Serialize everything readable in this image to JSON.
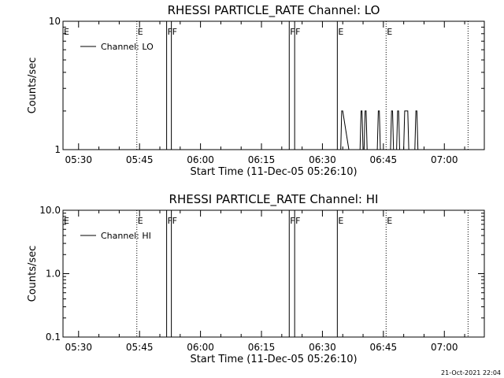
{
  "chart_data": [
    {
      "type": "line",
      "title": "RHESSI PARTICLE_RATE Channel: LO",
      "xlabel": "Start Time (11-Dec-05 05:26:10)",
      "ylabel": "Counts/sec",
      "y_scale": "log",
      "ylim": [
        1,
        10
      ],
      "y_ticks": [
        "1",
        "10"
      ],
      "y_tick_values": [
        1,
        10
      ],
      "xlim": [
        "05:26:10",
        "07:09:50"
      ],
      "x_ticks": [
        "05:30",
        "05:45",
        "06:00",
        "06:15",
        "06:30",
        "06:45",
        "07:00"
      ],
      "legend": {
        "label": "Channel: LO",
        "position": "top-left"
      },
      "series": [
        {
          "name": "Channel: LO",
          "x": [
            "06:34:30",
            "06:34:45",
            "06:35:00",
            "06:36:30",
            "06:39:15",
            "06:39:30",
            "06:39:45",
            "06:40:00",
            "06:40:15",
            "06:40:30",
            "06:40:45",
            "06:41:00",
            "06:43:30",
            "06:43:45",
            "06:44:00",
            "06:44:15",
            "06:46:45",
            "06:47:00",
            "06:47:15",
            "06:47:30",
            "06:48:15",
            "06:48:30",
            "06:48:45",
            "06:49:00",
            "06:50:00",
            "06:50:15",
            "06:51:00",
            "06:51:15",
            "06:52:45",
            "06:53:00",
            "06:53:15",
            "06:53:30"
          ],
          "y": [
            1,
            2,
            2,
            1,
            1,
            2,
            2,
            1,
            1,
            2,
            2,
            1,
            1,
            2,
            2,
            1,
            1,
            2,
            2,
            1,
            1,
            2,
            2,
            1,
            1,
            2,
            2,
            1,
            1,
            2,
            2,
            1
          ]
        }
      ],
      "flags": [
        {
          "label": "E",
          "time": "05:26:10",
          "line": "none"
        },
        {
          "label": "E",
          "time": "05:44:20",
          "line": "dotted"
        },
        {
          "label": "F",
          "time": "05:51:40",
          "line": "solid"
        },
        {
          "label": "F",
          "time": "05:52:50",
          "line": "solid"
        },
        {
          "label": "F",
          "time": "06:21:50",
          "line": "solid"
        },
        {
          "label": "F",
          "time": "06:23:10",
          "line": "solid"
        },
        {
          "label": "E",
          "time": "06:33:40",
          "line": "solid"
        },
        {
          "label": "E",
          "time": "06:45:40",
          "line": "dotted"
        },
        {
          "label": "",
          "time": "07:05:50",
          "line": "dotted"
        }
      ]
    },
    {
      "type": "line",
      "title": "RHESSI PARTICLE_RATE Channel: HI",
      "xlabel": "Start Time (11-Dec-05 05:26:10)",
      "ylabel": "Counts/sec",
      "y_scale": "log",
      "ylim": [
        0.1,
        10
      ],
      "y_ticks": [
        "0.1",
        "1.0",
        "10.0"
      ],
      "y_tick_values": [
        0.1,
        1,
        10
      ],
      "xlim": [
        "05:26:10",
        "07:09:50"
      ],
      "x_ticks": [
        "05:30",
        "05:45",
        "06:00",
        "06:15",
        "06:30",
        "06:45",
        "07:00"
      ],
      "legend": {
        "label": "Channel: HI",
        "position": "top-left"
      },
      "series": [
        {
          "name": "Channel: HI",
          "x": [],
          "y": []
        }
      ],
      "flags": [
        {
          "label": "E",
          "time": "05:26:10",
          "line": "none"
        },
        {
          "label": "E",
          "time": "05:44:20",
          "line": "dotted"
        },
        {
          "label": "F",
          "time": "05:51:40",
          "line": "solid"
        },
        {
          "label": "F",
          "time": "05:52:50",
          "line": "solid"
        },
        {
          "label": "F",
          "time": "06:21:50",
          "line": "solid"
        },
        {
          "label": "F",
          "time": "06:23:10",
          "line": "solid"
        },
        {
          "label": "E",
          "time": "06:33:40",
          "line": "solid"
        },
        {
          "label": "E",
          "time": "06:45:40",
          "line": "dotted"
        },
        {
          "label": "",
          "time": "07:05:50",
          "line": "dotted"
        }
      ]
    }
  ],
  "footer": {
    "timestamp": "21-Oct-2021 22:04"
  }
}
